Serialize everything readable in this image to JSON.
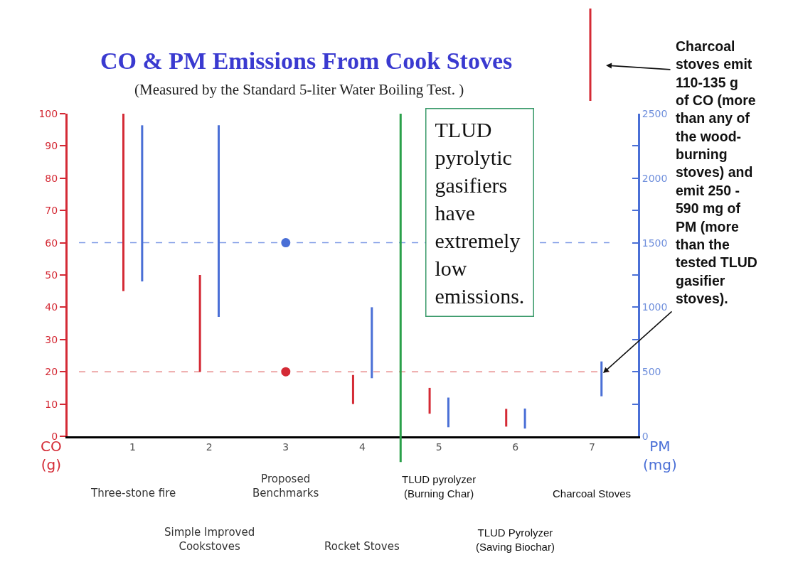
{
  "chart_data": {
    "type": "bar",
    "title": "CO & PM Emissions From Cook Stoves",
    "subtitle": "(Measured by the Standard 5-liter Water Boiling Test. )",
    "ylabel": "CO (g)",
    "y2label": "PM (mg)",
    "x": [
      1,
      2,
      3,
      4,
      5,
      6,
      7
    ],
    "xlim": [
      0.15,
      7.6
    ],
    "xticks": [
      1,
      2,
      3,
      4,
      5,
      6,
      7
    ],
    "ylim": [
      0,
      100
    ],
    "yticks": [
      0,
      10,
      20,
      30,
      40,
      50,
      60,
      70,
      80,
      90,
      100
    ],
    "y2lim": [
      0,
      2500
    ],
    "y2ticks": [
      0,
      {
        "value": 250,
        "label": null
      },
      500,
      {
        "value": 750,
        "label": null
      },
      1000,
      {
        "value": 1250,
        "label": null
      },
      1500,
      {
        "value": 1750,
        "label": null
      },
      2000,
      {
        "value": 2250,
        "label": null
      },
      2500
    ],
    "series": [
      {
        "color": "#d42a35",
        "base": [
          45,
          20,
          null,
          10,
          7,
          3,
          null
        ],
        "values": [
          55,
          30,
          null,
          9,
          8,
          5.5,
          null
        ]
      },
      {
        "color": "#4a6fd6",
        "axis": "y2",
        "base": [
          1200,
          925,
          null,
          450,
          70,
          60,
          310
        ],
        "values": [
          1210,
          1485,
          null,
          550,
          230,
          155,
          270
        ]
      },
      {
        "type": "scatter",
        "color": "#d42a35",
        "values": [
          null,
          null,
          20,
          null,
          null,
          null,
          null
        ]
      },
      {
        "type": "scatter",
        "color": "#4a6fd6",
        "axis": "y2",
        "values": [
          null,
          null,
          1500,
          null,
          null,
          null,
          null
        ]
      }
    ],
    "marker": "circle",
    "grid": false,
    "legend": false,
    "ref_lines": [
      {
        "axis": "y",
        "value": 20,
        "color": "#e88a8a",
        "line_style": "dashed"
      },
      {
        "axis": "y2",
        "value": 1500,
        "color": "#7f9be6",
        "line_style": "dashed"
      },
      {
        "axis": "x",
        "value": 4.5,
        "color": "#2aa04a",
        "line_style": "solid"
      }
    ],
    "annotations": [
      "TLUD pyrolytic gasifiers have extremely low emissions.",
      "Charcoal stoves emit 110-135 g of CO (more than any of the wood-burning stoves) and emit 250 - 590 mg of PM (more than the tested TLUD gasifier stoves).",
      "Three-stone fire",
      "Simple Improved Cookstoves",
      "Proposed Benchmarks",
      "Rocket Stoves",
      "TLUD pyrolyzer (Burning Char)",
      "TLUD Pyrolyzer (Saving Biochar)",
      "Charcoal Stoves"
    ]
  }
}
